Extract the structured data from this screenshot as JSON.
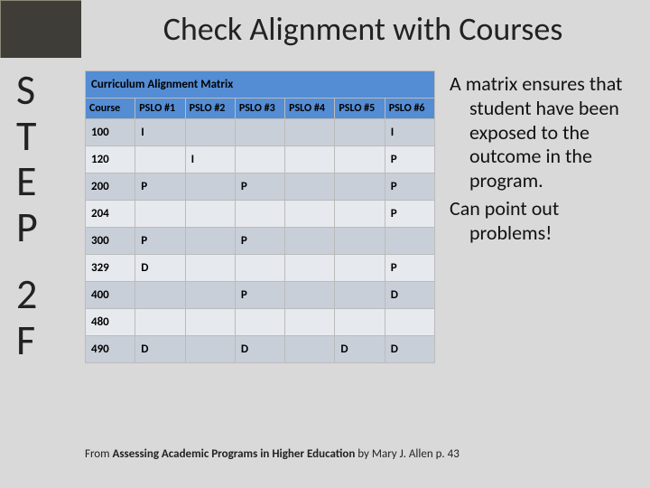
{
  "title": "Check Alignment with Courses",
  "side": {
    "s": "S",
    "t": "T",
    "e": "E",
    "p": "P",
    "two": "2",
    "f": "F"
  },
  "matrix": {
    "title": "Curriculum Alignment Matrix",
    "columns": [
      "Course",
      "PSLO #1",
      "PSLO #2",
      "PSLO #3",
      "PSLO #4",
      "PSLO #5",
      "PSLO #6"
    ],
    "rows": [
      {
        "course": "100",
        "c1": "I",
        "c2": "",
        "c3": "",
        "c4": "",
        "c5": "",
        "c6": "I"
      },
      {
        "course": "120",
        "c1": "",
        "c2": "I",
        "c3": "",
        "c4": "",
        "c5": "",
        "c6": "P"
      },
      {
        "course": "200",
        "c1": "P",
        "c2": "",
        "c3": "P",
        "c4": "",
        "c5": "",
        "c6": "P"
      },
      {
        "course": "204",
        "c1": "",
        "c2": "",
        "c3": "",
        "c4": "",
        "c5": "",
        "c6": "P"
      },
      {
        "course": "300",
        "c1": "P",
        "c2": "",
        "c3": "P",
        "c4": "",
        "c5": "",
        "c6": ""
      },
      {
        "course": "329",
        "c1": "D",
        "c2": "",
        "c3": "",
        "c4": "",
        "c5": "",
        "c6": "P"
      },
      {
        "course": "400",
        "c1": "",
        "c2": "",
        "c3": "P",
        "c4": "",
        "c5": "",
        "c6": "D"
      },
      {
        "course": "480",
        "c1": "",
        "c2": "",
        "c3": "",
        "c4": "",
        "c5": "",
        "c6": ""
      },
      {
        "course": "490",
        "c1": "D",
        "c2": "",
        "c3": "D",
        "c4": "",
        "c5": "D",
        "c6": "D"
      }
    ]
  },
  "bullets": {
    "b1": "A matrix ensures that student have been exposed to the outcome in the program.",
    "b2": "Can point out problems!"
  },
  "citation": {
    "pre": "From ",
    "book": "Assessing Academic Programs in Higher Education ",
    "post": "by Mary J. Allen p. 43"
  },
  "style": {
    "background": "#d9d9d9",
    "header_bg": "#548dd4",
    "row_dark": "#c9cfd8",
    "row_light": "#e6e9ee",
    "corner_bg": "#3f3d38"
  }
}
